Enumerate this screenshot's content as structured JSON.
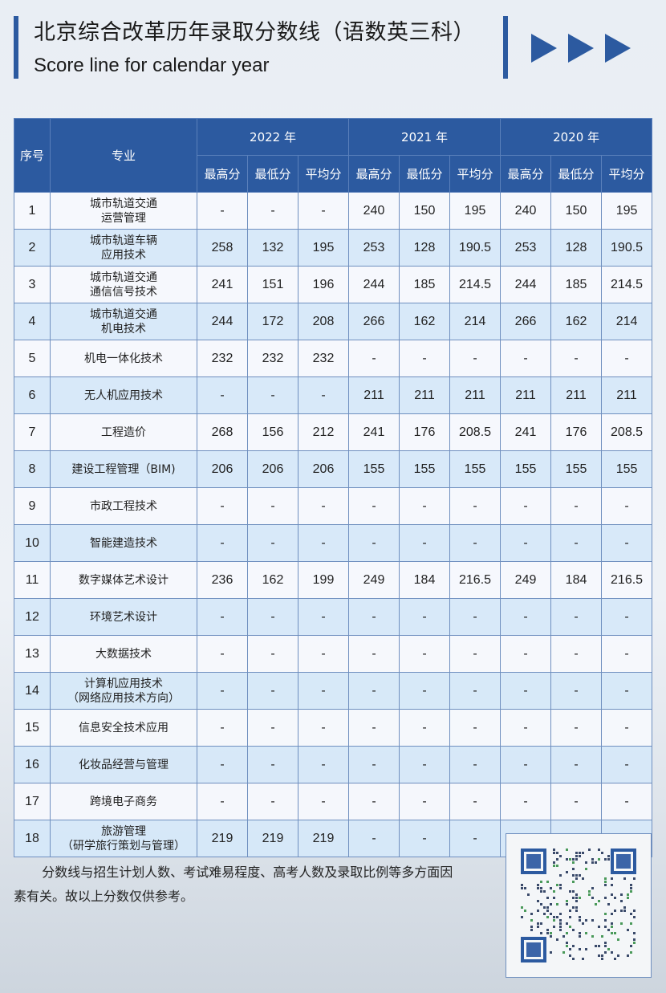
{
  "header": {
    "title": "北京综合改革历年录取分数线（语数英三科）",
    "subtitle": "Score line for calendar year",
    "accent_color": "#2c5aa0",
    "decor_icon": "triple-play-arrows"
  },
  "table": {
    "col_index": "序号",
    "col_major": "专业",
    "years": [
      "2022 年",
      "2021 年",
      "2020 年"
    ],
    "sub_headers": [
      "最高分",
      "最低分",
      "平均分"
    ],
    "rows": [
      {
        "no": "1",
        "major": [
          "城市轨道交通",
          "运营管理"
        ],
        "v": [
          "-",
          "-",
          "-",
          "240",
          "150",
          "195",
          "240",
          "150",
          "195"
        ]
      },
      {
        "no": "2",
        "major": [
          "城市轨道车辆",
          "应用技术"
        ],
        "v": [
          "258",
          "132",
          "195",
          "253",
          "128",
          "190.5",
          "253",
          "128",
          "190.5"
        ]
      },
      {
        "no": "3",
        "major": [
          "城市轨道交通",
          "通信信号技术"
        ],
        "v": [
          "241",
          "151",
          "196",
          "244",
          "185",
          "214.5",
          "244",
          "185",
          "214.5"
        ]
      },
      {
        "no": "4",
        "major": [
          "城市轨道交通",
          "机电技术"
        ],
        "v": [
          "244",
          "172",
          "208",
          "266",
          "162",
          "214",
          "266",
          "162",
          "214"
        ]
      },
      {
        "no": "5",
        "major": [
          "机电一体化技术"
        ],
        "v": [
          "232",
          "232",
          "232",
          "-",
          "-",
          "-",
          "-",
          "-",
          "-"
        ]
      },
      {
        "no": "6",
        "major": [
          "无人机应用技术"
        ],
        "v": [
          "-",
          "-",
          "-",
          "211",
          "211",
          "211",
          "211",
          "211",
          "211"
        ]
      },
      {
        "no": "7",
        "major": [
          "工程造价"
        ],
        "v": [
          "268",
          "156",
          "212",
          "241",
          "176",
          "208.5",
          "241",
          "176",
          "208.5"
        ]
      },
      {
        "no": "8",
        "major": [
          "建设工程管理（BIM)"
        ],
        "v": [
          "206",
          "206",
          "206",
          "155",
          "155",
          "155",
          "155",
          "155",
          "155"
        ]
      },
      {
        "no": "9",
        "major": [
          "市政工程技术"
        ],
        "v": [
          "-",
          "-",
          "-",
          "-",
          "-",
          "-",
          "-",
          "-",
          "-"
        ]
      },
      {
        "no": "10",
        "major": [
          "智能建造技术"
        ],
        "v": [
          "-",
          "-",
          "-",
          "-",
          "-",
          "-",
          "-",
          "-",
          "-"
        ]
      },
      {
        "no": "11",
        "major": [
          "数字媒体艺术设计"
        ],
        "v": [
          "236",
          "162",
          "199",
          "249",
          "184",
          "216.5",
          "249",
          "184",
          "216.5"
        ]
      },
      {
        "no": "12",
        "major": [
          "环境艺术设计"
        ],
        "v": [
          "-",
          "-",
          "-",
          "-",
          "-",
          "-",
          "-",
          "-",
          "-"
        ]
      },
      {
        "no": "13",
        "major": [
          "大数据技术"
        ],
        "v": [
          "-",
          "-",
          "-",
          "-",
          "-",
          "-",
          "-",
          "-",
          "-"
        ]
      },
      {
        "no": "14",
        "major": [
          "计算机应用技术",
          "（网络应用技术方向）"
        ],
        "v": [
          "-",
          "-",
          "-",
          "-",
          "-",
          "-",
          "-",
          "-",
          "-"
        ]
      },
      {
        "no": "15",
        "major": [
          "信息安全技术应用"
        ],
        "v": [
          "-",
          "-",
          "-",
          "-",
          "-",
          "-",
          "-",
          "-",
          "-"
        ]
      },
      {
        "no": "16",
        "major": [
          "化妆品经营与管理"
        ],
        "v": [
          "-",
          "-",
          "-",
          "-",
          "-",
          "-",
          "-",
          "-",
          "-"
        ]
      },
      {
        "no": "17",
        "major": [
          "跨境电子商务"
        ],
        "v": [
          "-",
          "-",
          "-",
          "-",
          "-",
          "-",
          "-",
          "-",
          "-"
        ]
      },
      {
        "no": "18",
        "major": [
          "旅游管理",
          "（研学旅行策划与管理）"
        ],
        "v": [
          "219",
          "219",
          "219",
          "-",
          "-",
          "-",
          "-",
          "-",
          "-"
        ]
      }
    ]
  },
  "footer": {
    "note": "分数线与招生计划人数、考试难易程度、高考人数及录取比例等多方面因素有关。故以上分数仅供参考。",
    "qr_icon": "qr-code"
  }
}
